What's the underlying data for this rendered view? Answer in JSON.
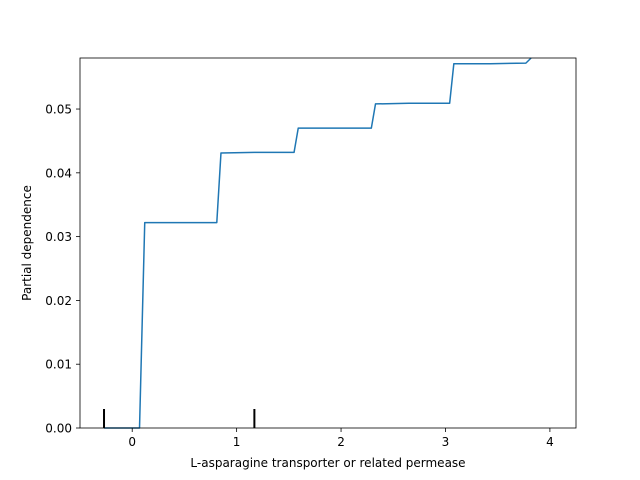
{
  "chart_data": {
    "type": "line",
    "title": "",
    "xlabel": "L-asparagine transporter or related permease",
    "ylabel": "Partial dependence",
    "xlim": [
      -0.5,
      4.25
    ],
    "ylim": [
      0.0,
      0.058
    ],
    "x_ticks": [
      0,
      1,
      2,
      3,
      4
    ],
    "x_tick_labels": [
      "0",
      "1",
      "2",
      "3",
      "4"
    ],
    "y_ticks": [
      0.0,
      0.01,
      0.02,
      0.03,
      0.04,
      0.05
    ],
    "y_tick_labels": [
      "0.00",
      "0.01",
      "0.02",
      "0.03",
      "0.04",
      "0.05"
    ],
    "grid": false,
    "legend": "none",
    "line_color": "#1f77b4",
    "rug_color": "#000000",
    "rug_x": [
      -0.27,
      1.17
    ],
    "series": [
      {
        "x": [
          -0.27,
          0.07,
          0.12,
          0.81,
          0.85,
          1.17,
          1.55,
          1.59,
          1.9,
          2.29,
          2.33,
          2.65,
          3.04,
          3.08,
          3.43,
          3.77,
          3.82
        ],
        "y": [
          0.0,
          0.0,
          0.0322,
          0.0322,
          0.0431,
          0.0432,
          0.0432,
          0.047,
          0.047,
          0.047,
          0.0508,
          0.0509,
          0.0509,
          0.0571,
          0.0571,
          0.0572,
          0.058
        ]
      }
    ]
  }
}
